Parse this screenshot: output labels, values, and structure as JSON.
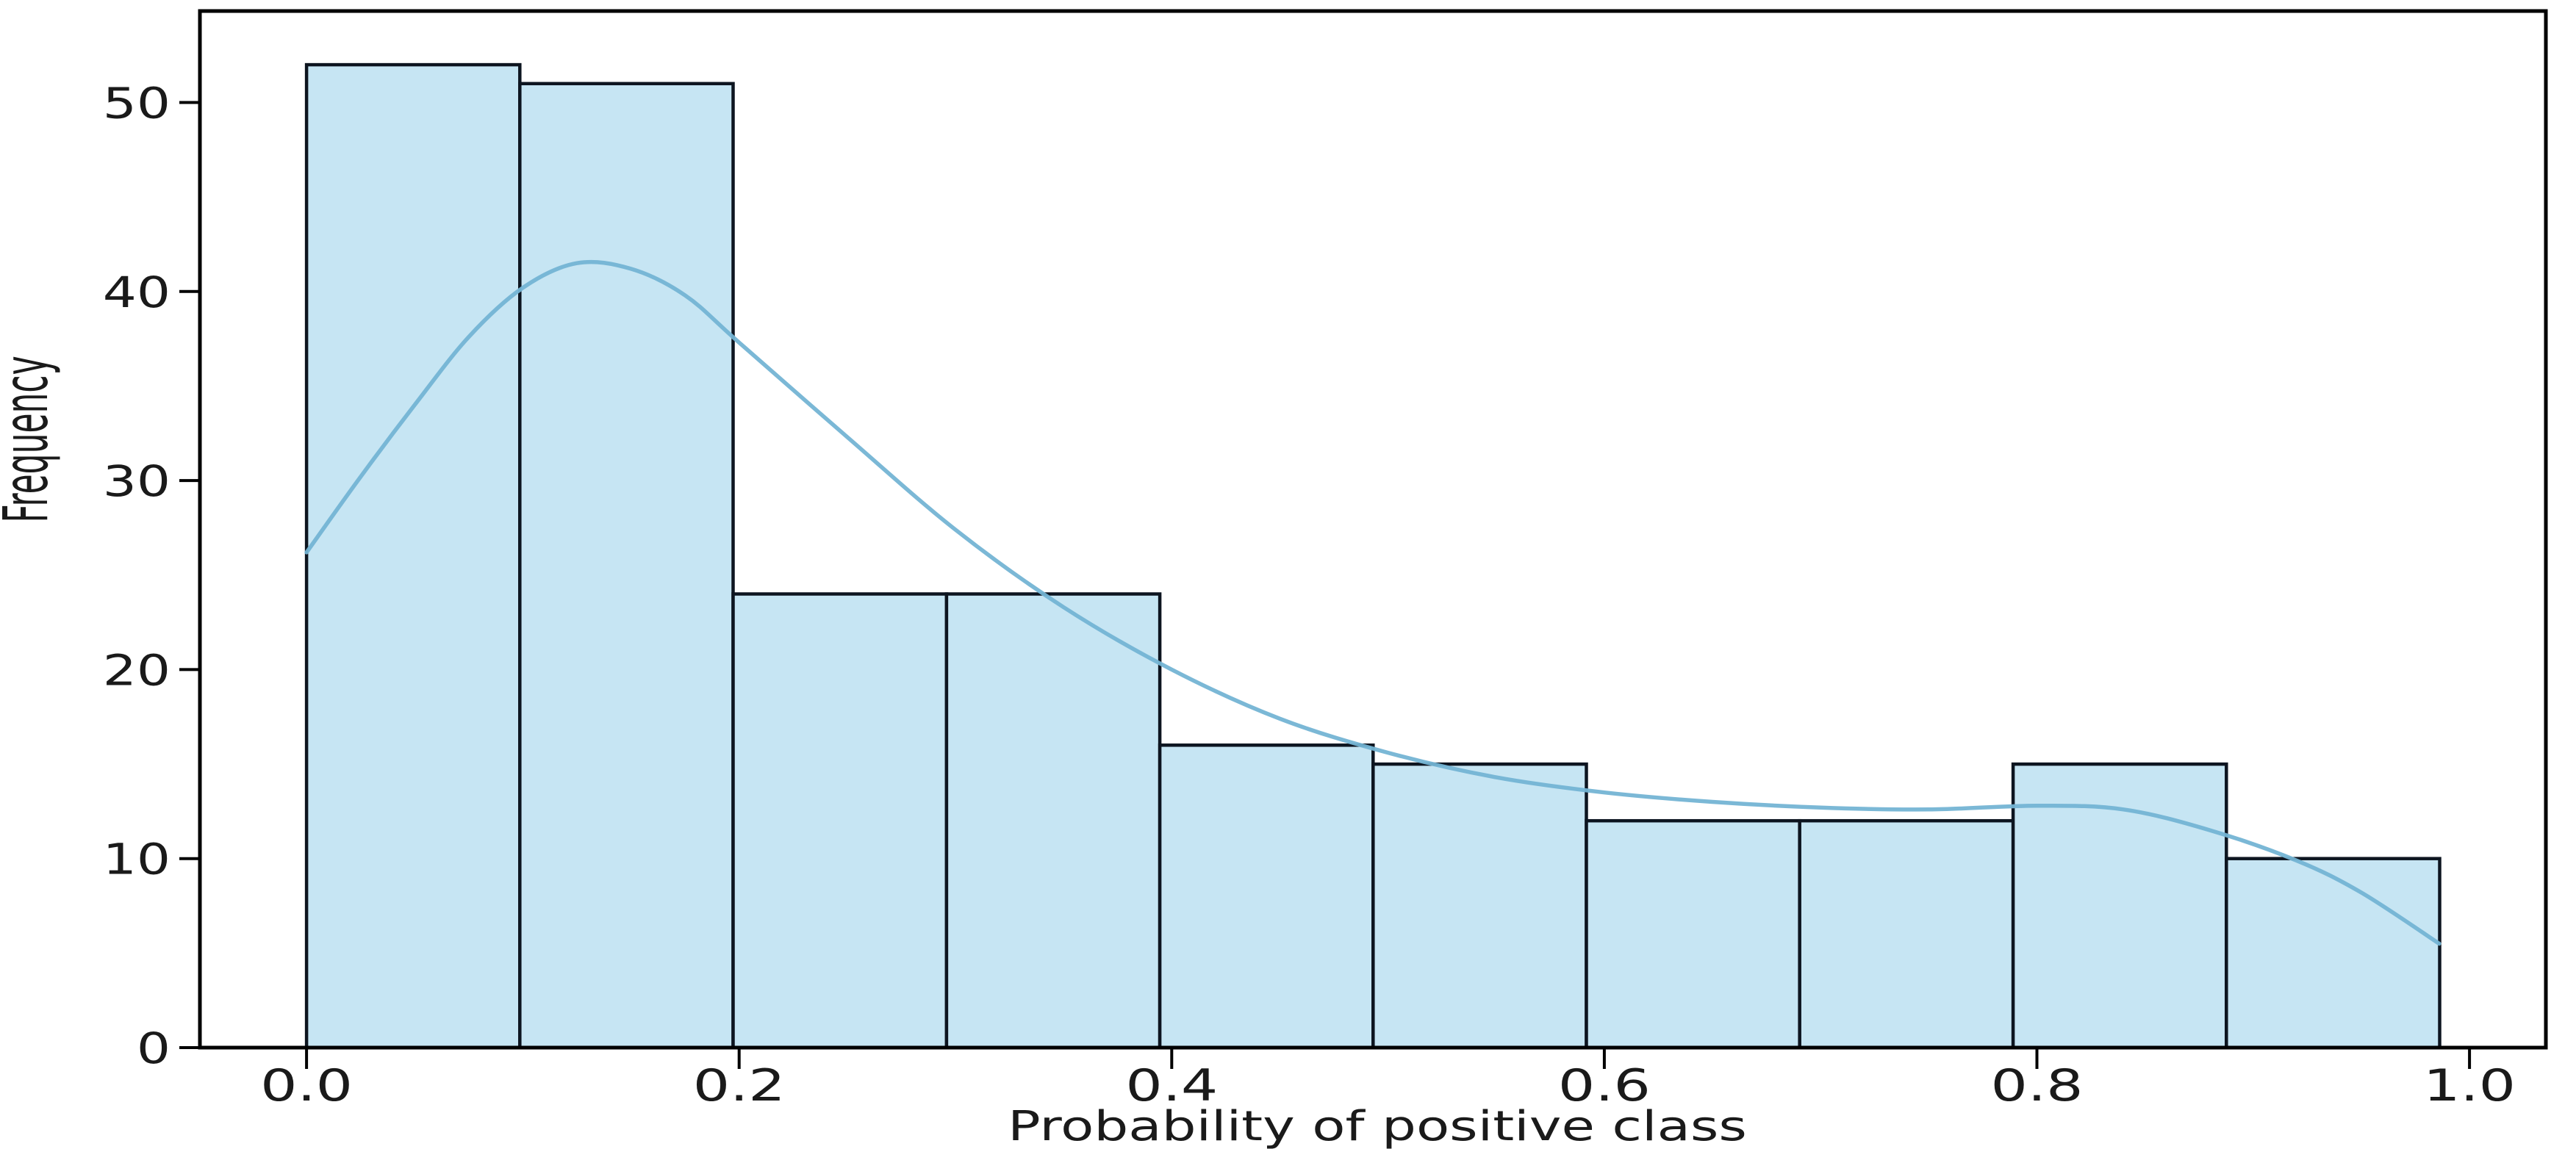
{
  "figure": {
    "background": "#ffffff"
  },
  "chart_data": {
    "type": "histogram",
    "subtype": "histogram_with_kde",
    "title": "",
    "xlabel": "Probability of positive class",
    "ylabel": "Frequency",
    "grid": false,
    "legend": null,
    "xlim": [
      -0.0493,
      1.0353
    ],
    "ylim": [
      0,
      54.84
    ],
    "bins": {
      "start": 0.0,
      "width": 0.0986,
      "edges": [
        0.0,
        0.0986,
        0.1972,
        0.2959,
        0.3945,
        0.4931,
        0.5917,
        0.6903,
        0.789,
        0.8876,
        0.9862
      ]
    },
    "counts": [
      52,
      51,
      24,
      24,
      16,
      15,
      12,
      12,
      15,
      10
    ],
    "kde": {
      "name": "kde-density-curve",
      "points": [
        [
          0.0,
          26.2
        ],
        [
          0.025,
          30.2
        ],
        [
          0.05,
          34.0
        ],
        [
          0.075,
          37.6
        ],
        [
          0.1,
          40.2
        ],
        [
          0.125,
          41.5
        ],
        [
          0.15,
          41.2
        ],
        [
          0.175,
          39.8
        ],
        [
          0.2,
          37.3
        ],
        [
          0.25,
          32.3
        ],
        [
          0.3,
          27.4
        ],
        [
          0.35,
          23.3
        ],
        [
          0.4,
          20.0
        ],
        [
          0.45,
          17.4
        ],
        [
          0.5,
          15.6
        ],
        [
          0.55,
          14.3
        ],
        [
          0.6,
          13.5
        ],
        [
          0.65,
          13.0
        ],
        [
          0.7,
          12.7
        ],
        [
          0.75,
          12.6
        ],
        [
          0.8,
          12.8
        ],
        [
          0.84,
          12.6
        ],
        [
          0.88,
          11.5
        ],
        [
          0.92,
          9.9
        ],
        [
          0.95,
          8.2
        ],
        [
          0.986,
          5.5
        ]
      ]
    },
    "xticks": {
      "values": [
        0.0,
        0.2,
        0.4,
        0.6,
        0.8,
        1.0
      ],
      "labels": [
        "0.0",
        "0.2",
        "0.4",
        "0.6",
        "0.8",
        "1.0"
      ]
    },
    "yticks": {
      "values": [
        0,
        10,
        20,
        30,
        40,
        50
      ],
      "labels": [
        "0",
        "10",
        "20",
        "30",
        "40",
        "50"
      ]
    },
    "colors": {
      "bar_fill": "#c6e5f3",
      "bar_edge": "#0d1520",
      "kde_line": "#74b4d4",
      "axis": "#000000",
      "tick_text": "#1a1a1a",
      "label_text": "#1a1a1a"
    }
  }
}
